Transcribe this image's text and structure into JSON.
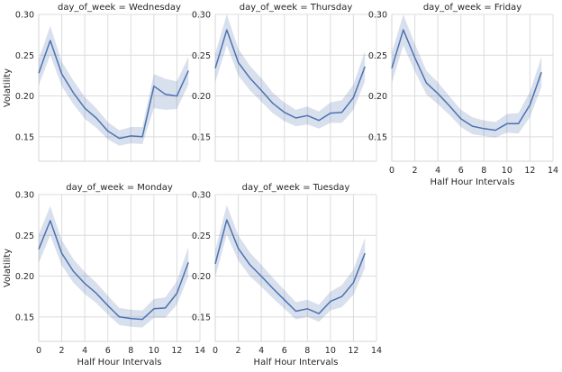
{
  "chart_data": {
    "type": "line",
    "figure_title": "",
    "facet_variable": "day_of_week",
    "shared_axes": {
      "xlabel": "Half Hour Intervals",
      "ylabel": "Volatility",
      "xlim": [
        0,
        14
      ],
      "ylim": [
        0.12,
        0.3
      ],
      "xticks": [
        0,
        2,
        4,
        6,
        8,
        10,
        12,
        14
      ],
      "yticks": [
        0.15,
        0.2,
        0.25,
        0.3
      ],
      "grid": true
    },
    "colors": {
      "line": "#4c72b0",
      "band": "#4c72b0",
      "grid": "#dcdcdc",
      "axis": "#d4d4d4"
    },
    "panels": [
      {
        "title": "day_of_week = Wednesday",
        "x": [
          0,
          1,
          2,
          3,
          4,
          5,
          6,
          7,
          8,
          9,
          10,
          11,
          12,
          13
        ],
        "mean": [
          0.228,
          0.268,
          0.227,
          0.204,
          0.185,
          0.173,
          0.157,
          0.148,
          0.151,
          0.15,
          0.212,
          0.202,
          0.2,
          0.231
        ],
        "lower": [
          0.213,
          0.25,
          0.212,
          0.19,
          0.172,
          0.161,
          0.147,
          0.139,
          0.142,
          0.141,
          0.185,
          0.183,
          0.184,
          0.214
        ],
        "upper": [
          0.245,
          0.286,
          0.242,
          0.219,
          0.199,
          0.185,
          0.168,
          0.158,
          0.162,
          0.162,
          0.227,
          0.221,
          0.218,
          0.248
        ],
        "show_ylabel": true,
        "show_xticks": false
      },
      {
        "title": "day_of_week = Thursday",
        "x": [
          0,
          1,
          2,
          3,
          4,
          5,
          6,
          7,
          8,
          9,
          10,
          11,
          12,
          13
        ],
        "mean": [
          0.234,
          0.281,
          0.241,
          0.222,
          0.207,
          0.191,
          0.18,
          0.173,
          0.176,
          0.17,
          0.179,
          0.18,
          0.198,
          0.236
        ],
        "lower": [
          0.217,
          0.262,
          0.225,
          0.207,
          0.193,
          0.179,
          0.169,
          0.163,
          0.165,
          0.16,
          0.167,
          0.167,
          0.183,
          0.218
        ],
        "upper": [
          0.252,
          0.3,
          0.258,
          0.237,
          0.222,
          0.204,
          0.192,
          0.183,
          0.187,
          0.181,
          0.192,
          0.195,
          0.214,
          0.255
        ],
        "show_ylabel": false,
        "show_xticks": false
      },
      {
        "title": "day_of_week = Friday",
        "x": [
          0,
          1,
          2,
          3,
          4,
          5,
          6,
          7,
          8,
          9,
          10,
          11,
          12,
          13
        ],
        "mean": [
          0.234,
          0.281,
          0.247,
          0.216,
          0.203,
          0.188,
          0.172,
          0.163,
          0.16,
          0.158,
          0.166,
          0.166,
          0.189,
          0.229
        ],
        "lower": [
          0.216,
          0.262,
          0.23,
          0.202,
          0.19,
          0.177,
          0.162,
          0.153,
          0.151,
          0.149,
          0.155,
          0.154,
          0.174,
          0.211
        ],
        "upper": [
          0.253,
          0.3,
          0.264,
          0.231,
          0.217,
          0.2,
          0.183,
          0.174,
          0.17,
          0.168,
          0.178,
          0.179,
          0.205,
          0.248
        ],
        "show_ylabel": false,
        "show_xticks": true
      },
      {
        "title": "day_of_week = Monday",
        "x": [
          0,
          1,
          2,
          3,
          4,
          5,
          6,
          7,
          8,
          9,
          10,
          11,
          12,
          13
        ],
        "mean": [
          0.233,
          0.268,
          0.228,
          0.206,
          0.191,
          0.179,
          0.164,
          0.15,
          0.148,
          0.147,
          0.16,
          0.161,
          0.179,
          0.217
        ],
        "lower": [
          0.216,
          0.25,
          0.213,
          0.192,
          0.178,
          0.167,
          0.153,
          0.14,
          0.138,
          0.137,
          0.149,
          0.149,
          0.165,
          0.2
        ],
        "upper": [
          0.251,
          0.286,
          0.244,
          0.221,
          0.205,
          0.192,
          0.176,
          0.161,
          0.159,
          0.158,
          0.172,
          0.174,
          0.194,
          0.236
        ],
        "show_ylabel": true,
        "show_xticks": true
      },
      {
        "title": "day_of_week = Tuesday",
        "x": [
          0,
          1,
          2,
          3,
          4,
          5,
          6,
          7,
          8,
          9,
          10,
          11,
          12,
          13
        ],
        "mean": [
          0.215,
          0.269,
          0.234,
          0.214,
          0.2,
          0.185,
          0.171,
          0.157,
          0.16,
          0.154,
          0.169,
          0.175,
          0.192,
          0.228
        ],
        "lower": [
          0.199,
          0.251,
          0.219,
          0.2,
          0.187,
          0.173,
          0.16,
          0.147,
          0.15,
          0.144,
          0.158,
          0.162,
          0.177,
          0.21
        ],
        "upper": [
          0.232,
          0.287,
          0.25,
          0.229,
          0.214,
          0.198,
          0.183,
          0.168,
          0.171,
          0.165,
          0.181,
          0.189,
          0.208,
          0.247
        ],
        "show_ylabel": false,
        "show_xticks": true
      }
    ]
  }
}
